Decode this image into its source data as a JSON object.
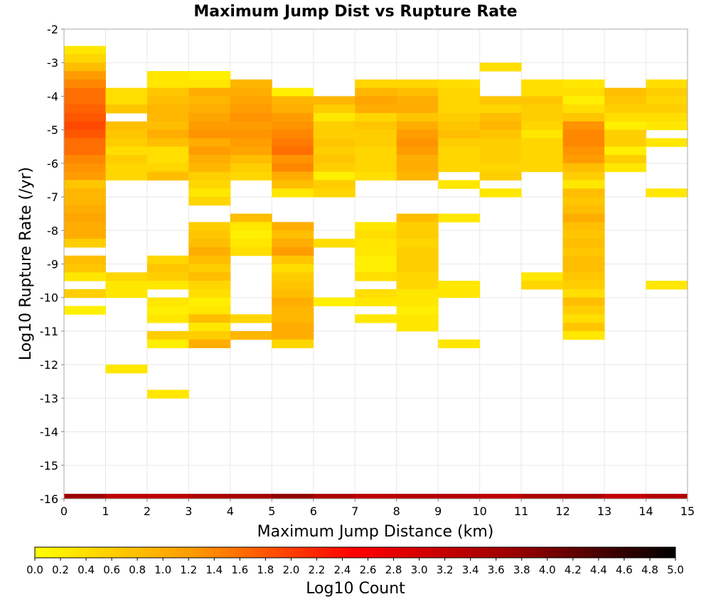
{
  "chart_data": {
    "type": "heatmap",
    "title": "Maximum Jump Dist vs Rupture Rate",
    "xlabel": "Maximum Jump Distance (km)",
    "ylabel": "Log10 Rupture Rate (/yr)",
    "xlim": [
      0,
      15
    ],
    "ylim": [
      -16,
      -2
    ],
    "x_ticks": [
      "0",
      "1",
      "2",
      "3",
      "4",
      "5",
      "6",
      "7",
      "8",
      "9",
      "10",
      "11",
      "12",
      "13",
      "14",
      "15"
    ],
    "y_ticks": [
      "-2",
      "-3",
      "-4",
      "-5",
      "-6",
      "-7",
      "-8",
      "-9",
      "-10",
      "-11",
      "-12",
      "-13",
      "-14",
      "-15",
      "-16"
    ],
    "x_bin_width": 1,
    "y_bin_height": 0.25,
    "colorbar": {
      "label": "Log10 Count",
      "range": [
        0,
        5
      ],
      "ticks": [
        "0.0",
        "0.2",
        "0.4",
        "0.6",
        "0.8",
        "1.0",
        "1.2",
        "1.4",
        "1.6",
        "1.8",
        "2.0",
        "2.2",
        "2.4",
        "2.6",
        "2.8",
        "3.0",
        "3.2",
        "3.4",
        "3.6",
        "3.8",
        "4.0",
        "4.2",
        "4.4",
        "4.6",
        "4.8",
        "5.0"
      ],
      "colors": [
        "#ffff00",
        "#ff9900",
        "#ff0000",
        "#990000",
        "#000000"
      ]
    },
    "columns": [
      {
        "x_start": 0,
        "y_start": -2.5,
        "values": [
          0.3,
          0.5,
          0.8,
          1.2,
          1.4,
          1.6,
          1.6,
          1.7,
          1.8,
          1.9,
          1.8,
          1.6,
          1.6,
          1.4,
          1.3,
          1.2,
          0.7,
          0.9,
          0.9,
          1.0,
          1.1,
          1.0,
          1.0,
          0.6,
          null,
          0.8,
          0.7,
          0.3,
          null,
          0.6,
          null,
          0.2
        ]
      },
      {
        "x_start": 1,
        "y_start": -3.75,
        "values": [
          0.4,
          0.4,
          0.7,
          null,
          0.8,
          0.7,
          0.6,
          0.4,
          0.6,
          0.5,
          0.5,
          null,
          null,
          null,
          null,
          null,
          null,
          null,
          null,
          null,
          null,
          null,
          0.5,
          0.3,
          0.3,
          null,
          null,
          null,
          null,
          null,
          null,
          null,
          null,
          0.3
        ]
      },
      {
        "x_start": 2,
        "y_start": -3.25,
        "values": [
          0.3,
          0.3,
          0.7,
          0.8,
          0.9,
          0.9,
          0.8,
          1.0,
          0.8,
          0.4,
          0.4,
          0.5,
          0.8,
          null,
          null,
          null,
          null,
          null,
          null,
          null,
          null,
          null,
          0.5,
          0.7,
          0.6,
          0.3,
          null,
          0.3,
          0.2,
          0.3,
          null,
          0.6,
          0.2,
          null,
          null,
          null,
          null,
          null,
          0.3
        ]
      },
      {
        "x_start": 3,
        "y_start": -3.25,
        "values": [
          0.2,
          0.3,
          1.0,
          0.9,
          1.0,
          1.1,
          1.2,
          1.3,
          1.0,
          1.2,
          1.0,
          0.9,
          0.6,
          0.5,
          0.3,
          0.5,
          null,
          null,
          0.6,
          0.7,
          0.8,
          1.0,
          0.8,
          0.6,
          0.8,
          0.5,
          0.4,
          0.2,
          0.3,
          0.8,
          0.3,
          0.6,
          1.0
        ]
      },
      {
        "x_start": 4,
        "y_start": -3.5,
        "values": [
          0.9,
          1.0,
          1.1,
          1.2,
          1.3,
          1.2,
          1.3,
          1.2,
          1.1,
          0.8,
          0.6,
          0.5,
          null,
          null,
          null,
          null,
          0.8,
          0.3,
          0.2,
          0.3,
          0.4,
          null,
          null,
          null,
          null,
          null,
          null,
          null,
          0.5,
          null,
          0.9
        ]
      },
      {
        "x_start": 5,
        "y_start": -3.75,
        "values": [
          0.2,
          0.9,
          1.0,
          1.2,
          1.3,
          1.4,
          1.5,
          1.6,
          1.3,
          1.4,
          1.0,
          0.8,
          0.3,
          null,
          null,
          null,
          1.0,
          0.8,
          1.0,
          1.2,
          0.7,
          0.4,
          0.6,
          0.7,
          0.8,
          1.0,
          0.9,
          0.9,
          1.0,
          1.0,
          0.5
        ]
      },
      {
        "x_start": 6,
        "y_start": -4,
        "values": [
          0.9,
          0.6,
          0.3,
          0.6,
          0.6,
          0.7,
          0.6,
          0.7,
          0.6,
          0.2,
          0.6,
          0.5,
          null,
          null,
          null,
          null,
          null,
          0.4,
          null,
          null,
          null,
          null,
          null,
          null,
          0.2
        ]
      },
      {
        "x_start": 7,
        "y_start": -3.5,
        "values": [
          0.5,
          0.9,
          1.1,
          1.0,
          0.5,
          0.7,
          0.6,
          0.6,
          0.5,
          0.5,
          0.5,
          0.4,
          null,
          null,
          null,
          null,
          null,
          0.3,
          0.4,
          0.3,
          0.3,
          0.2,
          0.2,
          0.4,
          null,
          0.4,
          0.3,
          null,
          0.3
        ]
      },
      {
        "x_start": 8,
        "y_start": -3.5,
        "values": [
          0.5,
          0.8,
          1.0,
          1.0,
          0.7,
          1.0,
          1.2,
          1.3,
          1.2,
          1.0,
          1.0,
          0.9,
          null,
          null,
          null,
          null,
          0.8,
          0.6,
          0.6,
          0.5,
          0.6,
          0.6,
          0.6,
          0.5,
          0.5,
          0.3,
          0.3,
          0.2,
          0.3,
          0.3
        ]
      },
      {
        "x_start": 9,
        "y_start": -3.5,
        "values": [
          0.4,
          0.5,
          0.5,
          0.5,
          0.6,
          0.7,
          0.8,
          0.6,
          0.5,
          0.5,
          0.5,
          null,
          0.3,
          null,
          null,
          null,
          0.3,
          null,
          null,
          null,
          null,
          null,
          null,
          null,
          0.3,
          0.3,
          null,
          null,
          null,
          null,
          null,
          0.3
        ]
      },
      {
        "x_start": 10,
        "y_start": -3,
        "values": [
          0.4,
          null,
          null,
          null,
          0.7,
          0.5,
          0.8,
          0.9,
          0.7,
          0.6,
          0.6,
          0.6,
          0.5,
          0.6,
          null,
          0.3
        ]
      },
      {
        "x_start": 11,
        "y_start": -3.5,
        "values": [
          0.4,
          0.4,
          0.7,
          0.6,
          0.6,
          0.5,
          0.3,
          0.5,
          0.5,
          0.5,
          0.5,
          null,
          null,
          null,
          null,
          null,
          null,
          null,
          null,
          null,
          null,
          null,
          null,
          0.3,
          0.5
        ]
      },
      {
        "x_start": 12,
        "y_start": -3.5,
        "values": [
          0.3,
          0.4,
          0.2,
          0.4,
          0.7,
          1.3,
          1.4,
          1.4,
          1.3,
          1.2,
          0.8,
          0.6,
          0.3,
          0.8,
          0.7,
          0.8,
          1.0,
          0.8,
          0.7,
          0.8,
          0.7,
          0.8,
          0.8,
          0.7,
          0.6,
          0.4,
          0.8,
          0.6,
          0.4,
          0.7,
          0.3
        ]
      },
      {
        "x_start": 13,
        "y_start": -3.75,
        "values": [
          0.8,
          0.7,
          0.6,
          0.4,
          0.2,
          0.6,
          0.6,
          0.2,
          0.6,
          0.3
        ]
      },
      {
        "x_start": 14,
        "y_start": -3.5,
        "values": [
          0.4,
          0.6,
          0.5,
          0.6,
          0.4,
          0.3,
          null,
          0.3,
          null,
          null,
          null,
          null,
          null,
          0.3,
          null,
          null,
          null,
          null,
          null,
          null,
          null,
          null,
          null,
          null,
          0.3
        ]
      }
    ],
    "bottom_row": {
      "y_start": -15.85,
      "y_end": -16.0,
      "values": [
        3.7,
        3.3,
        3.3,
        3.5,
        3.6,
        3.8,
        3.5,
        3.3,
        3.4,
        3.4,
        3.3,
        3.5,
        3.5,
        3.2,
        3.4
      ]
    },
    "grid": true
  }
}
